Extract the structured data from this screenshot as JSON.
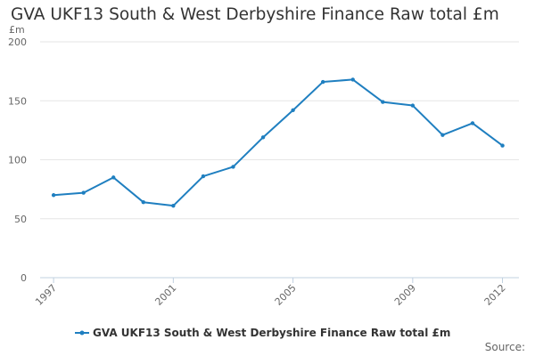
{
  "chart_data": {
    "type": "line",
    "title": "GVA UKF13 South & West Derbyshire Finance Raw total £m",
    "ylabel": "£m",
    "xlabel": "",
    "ylim": [
      0,
      200
    ],
    "y_ticks": [
      0,
      50,
      100,
      150,
      200
    ],
    "x_ticks": [
      "1997",
      "2001",
      "2005",
      "2009",
      "2012"
    ],
    "grid": "horizontal",
    "legend_position": "bottom",
    "series": [
      {
        "name": "GVA UKF13 South & West Derbyshire Finance Raw total £m",
        "color": "#1f7fc0",
        "x": [
          1997,
          1998,
          1999,
          2000,
          2001,
          2002,
          2003,
          2004,
          2005,
          2006,
          2007,
          2008,
          2009,
          2010,
          2011,
          2012
        ],
        "values": [
          70,
          72,
          85,
          64,
          61,
          86,
          94,
          119,
          142,
          166,
          168,
          149,
          146,
          121,
          131,
          112
        ]
      }
    ]
  },
  "source_label": "Source:"
}
